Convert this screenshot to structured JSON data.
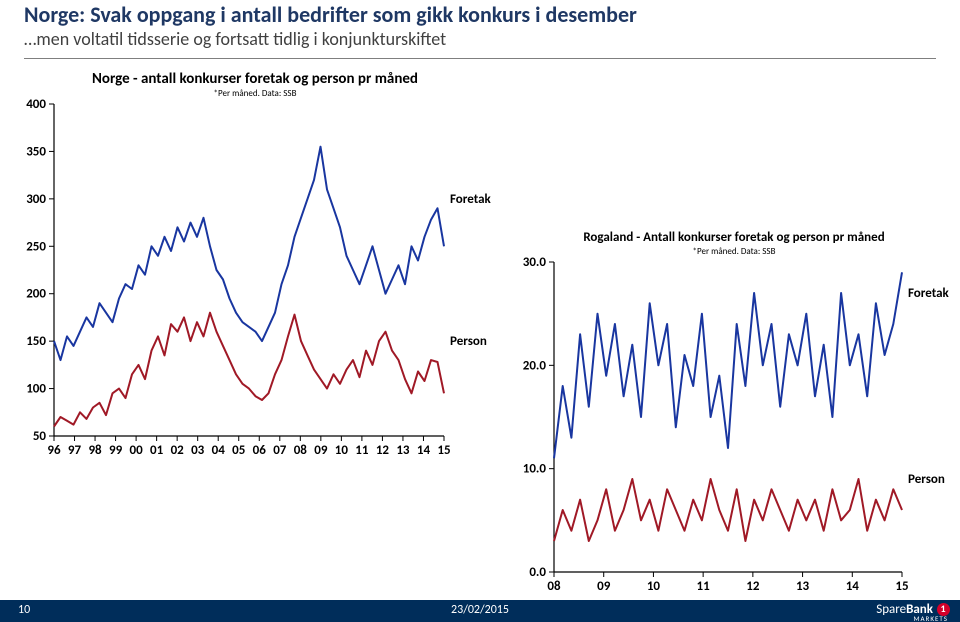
{
  "header": {
    "title_main": "Norge: Svak oppgang i antall bedrifter som gikk konkurs i desember",
    "title_sub": "…men voltatil tidsserie og fortsatt tidlig i konjunkturskiftet"
  },
  "chart1": {
    "type": "line",
    "title": "Norge - antall konkurser foretak og person pr måned",
    "subtitle": "*Per måned. Data: SSB",
    "title_fontsize": 15,
    "background_color": "#ffffff",
    "axis_color": "#000000",
    "ylim": [
      50,
      400
    ],
    "yticks": [
      50,
      100,
      150,
      200,
      250,
      300,
      350,
      400
    ],
    "xticks": [
      "96",
      "97",
      "98",
      "99",
      "00",
      "01",
      "02",
      "03",
      "04",
      "05",
      "06",
      "07",
      "08",
      "09",
      "10",
      "11",
      "12",
      "13",
      "14",
      "15"
    ],
    "series": [
      {
        "name": "Foretak",
        "label": "Foretak",
        "color": "#1936a0",
        "width": 2,
        "data": [
          150,
          130,
          155,
          145,
          160,
          175,
          165,
          190,
          180,
          170,
          195,
          210,
          205,
          230,
          220,
          250,
          240,
          260,
          245,
          270,
          255,
          275,
          260,
          280,
          250,
          225,
          215,
          195,
          180,
          170,
          165,
          160,
          150,
          165,
          180,
          210,
          230,
          260,
          280,
          300,
          320,
          355,
          310,
          290,
          270,
          240,
          225,
          210,
          230,
          250,
          225,
          200,
          215,
          230,
          210,
          250,
          235,
          260,
          278,
          290,
          250
        ]
      },
      {
        "name": "Person",
        "label": "Person",
        "color": "#a01926",
        "width": 2,
        "data": [
          60,
          70,
          66,
          62,
          75,
          68,
          80,
          85,
          72,
          95,
          100,
          90,
          115,
          125,
          110,
          140,
          155,
          135,
          168,
          160,
          175,
          150,
          170,
          155,
          180,
          160,
          145,
          130,
          115,
          105,
          100,
          92,
          88,
          95,
          115,
          130,
          155,
          178,
          150,
          135,
          120,
          110,
          100,
          115,
          105,
          120,
          130,
          112,
          140,
          125,
          150,
          160,
          140,
          130,
          110,
          95,
          118,
          108,
          130,
          128,
          95
        ]
      }
    ],
    "label_positions": {
      "Foretak": {
        "y": 300
      },
      "Person": {
        "y": 150
      }
    }
  },
  "chart2": {
    "type": "line",
    "title": "Rogaland - Antall konkurser foretak og person pr måned",
    "subtitle": "*Per måned. Data: SSB",
    "title_fontsize": 13,
    "background_color": "#ffffff",
    "axis_color": "#000000",
    "ylim": [
      0,
      30
    ],
    "yticks": [
      0.0,
      10.0,
      20.0,
      30.0
    ],
    "ytick_fmt": "0.0",
    "xticks": [
      "08",
      "09",
      "10",
      "11",
      "12",
      "13",
      "14",
      "15"
    ],
    "series": [
      {
        "name": "Foretak",
        "label": "Foretak",
        "color": "#1936a0",
        "width": 2,
        "data": [
          11,
          18,
          13,
          23,
          16,
          25,
          19,
          24,
          17,
          22,
          15,
          26,
          20,
          24,
          14,
          21,
          18,
          25,
          15,
          19,
          12,
          24,
          18,
          27,
          20,
          24,
          16,
          23,
          20,
          25,
          17,
          22,
          15,
          27,
          20,
          23,
          17,
          26,
          21,
          24,
          29
        ]
      },
      {
        "name": "Person",
        "label": "Person",
        "color": "#a01926",
        "width": 2,
        "data": [
          3,
          6,
          4,
          7,
          3,
          5,
          8,
          4,
          6,
          9,
          5,
          7,
          4,
          8,
          6,
          4,
          7,
          5,
          9,
          6,
          4,
          8,
          3,
          7,
          5,
          8,
          6,
          4,
          7,
          5,
          7,
          4,
          8,
          5,
          6,
          9,
          4,
          7,
          5,
          8,
          6
        ]
      }
    ],
    "label_positions": {
      "Foretak": {
        "y": 27
      },
      "Person": {
        "y": 9
      }
    }
  },
  "footer": {
    "page": "10",
    "date": "23/02/2015",
    "brand_a": "Spare",
    "brand_b": "Bank",
    "brand_sub": "MARKETS"
  }
}
